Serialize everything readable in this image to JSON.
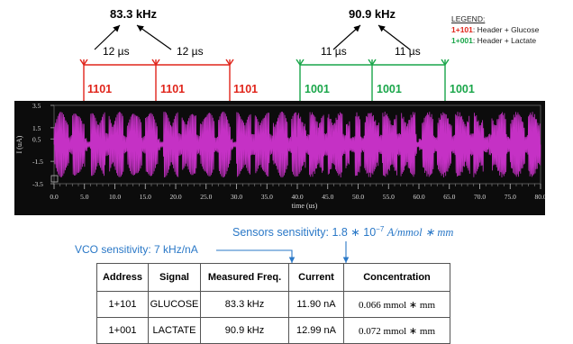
{
  "freq_left": "83.3 kHz",
  "freq_right": "90.9 kHz",
  "period_left": [
    "12 µs",
    "12 µs"
  ],
  "period_right": [
    "11 µs",
    "11 µs"
  ],
  "codes_red": [
    "1101",
    "1101",
    "1101"
  ],
  "codes_green": [
    "1001",
    "1001",
    "1001"
  ],
  "legend": {
    "title": "LEGEND:",
    "items": [
      {
        "code": "1+101",
        "text": ": Header + Glucose",
        "color": "#e0251b"
      },
      {
        "code": "1+001",
        "text": ": Header + Lactate",
        "color": "#1aa64a"
      }
    ]
  },
  "scope": {
    "y_ticks": [
      "3.5",
      "1.5",
      "0.5",
      "-1.5",
      "-3.5"
    ],
    "x_ticks": [
      "0.0",
      "5.0",
      "10.0",
      "15.0",
      "20.0",
      "25.0",
      "30.0",
      "35.0",
      "40.0",
      "45.0",
      "50.0",
      "55.0",
      "60.0",
      "65.0",
      "70.0",
      "75.0",
      "80.0"
    ],
    "ylabel": "I (uA)",
    "xlabel": "time (us)",
    "trace_color": "#c531c5"
  },
  "sensors_sensitivity": {
    "prefix": "Sensors sensitivity: 1.8 ∗ 10",
    "exp": "−7",
    "unit": "A/mmol ∗ mm"
  },
  "vco_sensitivity": "VCO sensitivity: 7 kHz/nA",
  "table": {
    "headers": [
      "Address",
      "Signal",
      "Measured Freq.",
      "Current",
      "Concentration"
    ],
    "rows": [
      [
        "1+101",
        "GLUCOSE",
        "83.3 kHz",
        "11.90 nA",
        "0.066 mmol ∗ mm"
      ],
      [
        "1+001",
        "LACTATE",
        "90.9 kHz",
        "12.99 nA",
        "0.072 mmol ∗ mm"
      ]
    ]
  }
}
